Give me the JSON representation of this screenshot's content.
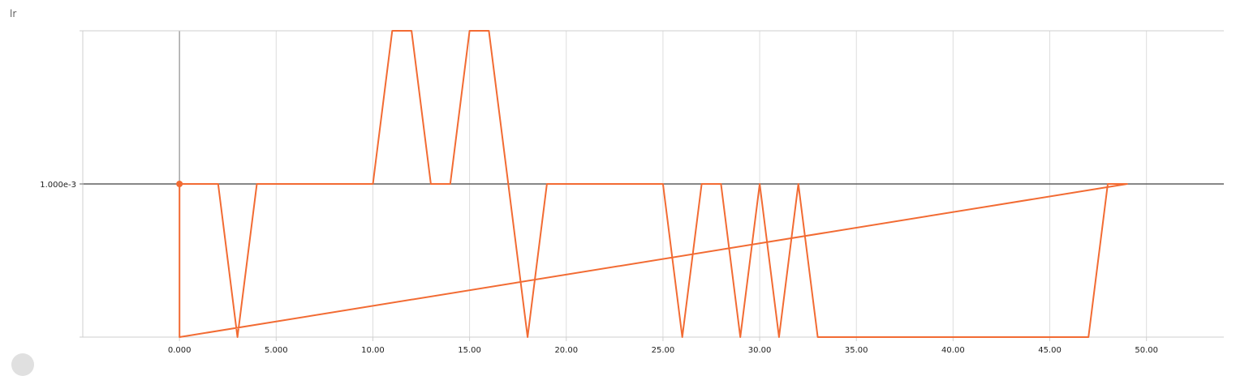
{
  "chart_data": {
    "type": "line",
    "title": "lr",
    "xlim": [
      -5,
      54
    ],
    "ylim": [
      0,
      0.002
    ],
    "x_ticks": [
      {
        "value": 0,
        "label": "0.000"
      },
      {
        "value": 5,
        "label": "5.000"
      },
      {
        "value": 10,
        "label": "10.00"
      },
      {
        "value": 15,
        "label": "15.00"
      },
      {
        "value": 20,
        "label": "20.00"
      },
      {
        "value": 25,
        "label": "25.00"
      },
      {
        "value": 30,
        "label": "30.00"
      },
      {
        "value": 35,
        "label": "35.00"
      },
      {
        "value": 40,
        "label": "40.00"
      },
      {
        "value": 45,
        "label": "45.00"
      },
      {
        "value": 50,
        "label": "50.00"
      }
    ],
    "y_ticks": [
      {
        "value": 0.001,
        "label": "1.000e-3"
      }
    ],
    "grid": true,
    "series": [
      {
        "color": "#f26b33",
        "values": [
          [
            0,
            0.001
          ],
          [
            0,
            0
          ],
          [
            49,
            0.001
          ],
          [
            48,
            0.001
          ],
          [
            47,
            0
          ],
          [
            33,
            0
          ],
          [
            32,
            0.001
          ],
          [
            31,
            0
          ],
          [
            30,
            0.001
          ],
          [
            29,
            0
          ],
          [
            28,
            0.001
          ],
          [
            27,
            0.001
          ],
          [
            26,
            0
          ],
          [
            25,
            0.001
          ],
          [
            19,
            0.001
          ],
          [
            18,
            0
          ],
          [
            17,
            0.001
          ],
          [
            16,
            0.002
          ],
          [
            15,
            0.002
          ],
          [
            14,
            0.001
          ],
          [
            13,
            0.001
          ],
          [
            12,
            0.002
          ],
          [
            11,
            0.002
          ],
          [
            10,
            0.001
          ],
          [
            4,
            0.001
          ],
          [
            3,
            0
          ],
          [
            2,
            0.001
          ],
          [
            0,
            0.001
          ]
        ]
      }
    ],
    "marker": {
      "x": 0,
      "y": 0.001
    }
  }
}
